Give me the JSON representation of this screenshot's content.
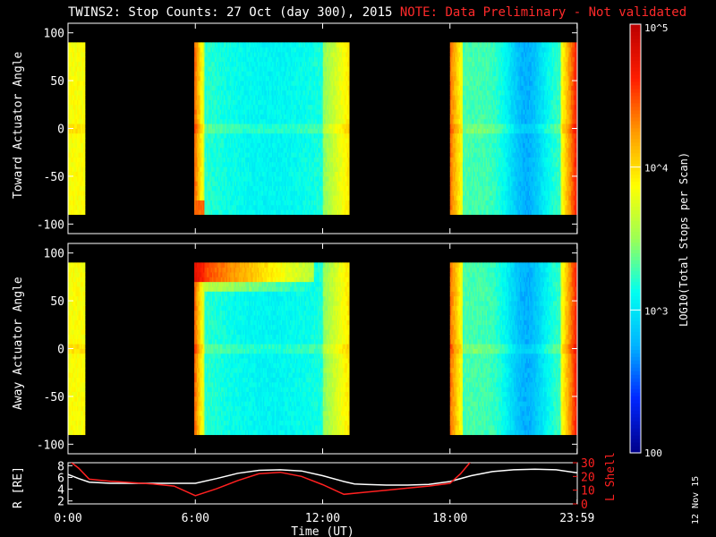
{
  "chart_data": {
    "type": "heatmap",
    "title": "TWINS2: Stop Counts: 27 Oct (day 300), 2015",
    "note": "NOTE: Data Preliminary - Not validated",
    "xlabel": "Time (UT)",
    "x_ticks": [
      "0:00",
      "6:00",
      "12:00",
      "18:00",
      "23:59"
    ],
    "panels": [
      {
        "ylabel": "Toward Actuator Angle",
        "yticks": [
          "100",
          "50",
          "0",
          "-50",
          "-100"
        ],
        "ylim": [
          -110,
          110
        ],
        "data_angle_range": [
          -90,
          90
        ],
        "data_segments_ut": [
          [
            0.0,
            0.8
          ],
          [
            5.95,
            13.25
          ],
          [
            18.0,
            23.99
          ]
        ]
      },
      {
        "ylabel": "Away Actuator Angle",
        "yticks": [
          "100",
          "50",
          "0",
          "-50",
          "-100"
        ],
        "ylim": [
          -110,
          110
        ],
        "data_angle_range": [
          -90,
          90
        ],
        "data_segments_ut": [
          [
            0.0,
            0.8
          ],
          [
            5.95,
            13.25
          ],
          [
            18.0,
            23.99
          ]
        ]
      }
    ],
    "colorbar": {
      "label": "LOG10(Total Stops per Scan)",
      "scale": "log",
      "range": [
        100,
        100000
      ],
      "ticks": [
        "10^5",
        "10^4",
        "10^3",
        "100"
      ]
    },
    "orbit_panel": {
      "left_label": "R [RE]",
      "right_label": "L Shell",
      "left_ticks": [
        "8",
        "6",
        "4",
        "2"
      ],
      "right_ticks": [
        "30",
        "20",
        "10",
        "0"
      ],
      "left_range": [
        1.5,
        8.5
      ],
      "right_range": [
        0,
        30
      ],
      "series": [
        {
          "name": "R [RE]",
          "color": "#ffffff",
          "x": [
            0,
            0.5,
            1,
            2,
            3,
            4,
            5,
            6,
            7,
            8,
            9,
            10,
            11,
            12,
            13,
            13.5,
            14,
            15,
            16,
            17,
            18,
            19,
            20,
            21,
            22,
            23,
            23.99
          ],
          "y": [
            6.5,
            5.8,
            5.2,
            5.0,
            5.0,
            5.0,
            5.0,
            5.0,
            5.8,
            6.7,
            7.2,
            7.3,
            7.1,
            6.3,
            5.3,
            4.9,
            4.8,
            4.7,
            4.7,
            4.8,
            5.3,
            6.3,
            7.0,
            7.3,
            7.4,
            7.3,
            6.8
          ]
        },
        {
          "name": "L Shell",
          "color": "#ff2020",
          "x": [
            0,
            0.5,
            1,
            2,
            3,
            4,
            5,
            6,
            7,
            8,
            9,
            10,
            11,
            12,
            13,
            14,
            15,
            16,
            17,
            18,
            18.5,
            19.1
          ],
          "y": [
            32,
            26,
            18,
            16.5,
            15.5,
            14.5,
            13,
            6,
            11,
            17,
            22,
            23,
            20,
            14,
            7,
            8.5,
            10,
            11.5,
            13,
            15,
            22,
            33
          ]
        }
      ]
    },
    "footer_stamp": "12 Nov 15"
  },
  "colors": {
    "colormap": [
      "#00008c",
      "#0026ff",
      "#00b4ff",
      "#00fff0",
      "#9bff55",
      "#ffff00",
      "#ff9b00",
      "#ff1e00",
      "#be0000"
    ],
    "note": "#ff2a2a",
    "line_white": "#ffffff",
    "line_red": "#ff2020"
  }
}
